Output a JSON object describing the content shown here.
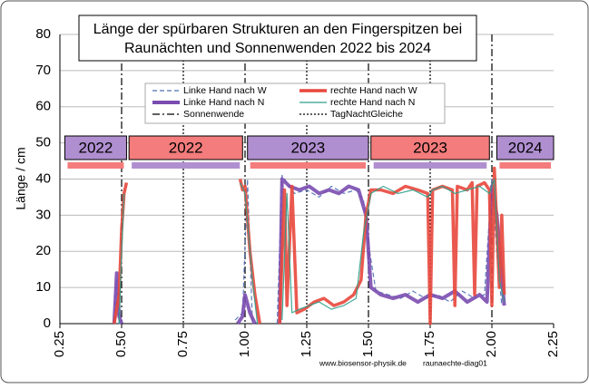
{
  "chart_data": {
    "type": "line",
    "title": [
      "Länge der spürbaren Strukturen an den Fingerspitzen bei",
      "Raunächten  und Sonnenwenden 2022 bis 2024"
    ],
    "y_label": "Länge / cm",
    "footer": [
      "www.biosensor-physik.de",
      "raunaechte-diag01"
    ],
    "xlim": [
      0.25,
      2.25
    ],
    "xticks": [
      {
        "value": 0.25,
        "label": "0.25"
      },
      {
        "value": 0.5,
        "label": "0.50"
      },
      {
        "value": 0.75,
        "label": "0.75"
      },
      {
        "value": 1.0,
        "label": "1.00"
      },
      {
        "value": 1.25,
        "label": "1.25"
      },
      {
        "value": 1.5,
        "label": "1.50"
      },
      {
        "value": 1.75,
        "label": "1.75"
      },
      {
        "value": 2.0,
        "label": "2.00"
      },
      {
        "value": 2.25,
        "label": "2.25"
      }
    ],
    "ylim": [
      0,
      80
    ],
    "yticks": [
      0,
      10,
      20,
      30,
      40,
      50,
      60,
      70,
      80
    ],
    "grid": true,
    "series": [
      {
        "name": "Linke Hand nach W",
        "color": "#4a6fb5",
        "line_style": "dashed",
        "x": [
          0.47,
          0.48,
          0.49,
          0.5,
          0.7,
          0.96,
          0.99,
          1.01,
          1.03,
          1.08,
          1.13,
          1.15,
          1.2,
          1.25,
          1.3,
          1.35,
          1.4,
          1.45,
          1.48,
          1.5,
          1.53,
          1.58,
          1.63,
          1.68,
          1.73,
          1.78,
          1.83,
          1.88,
          1.93,
          1.97,
          2.0,
          2.02,
          2.04
        ],
        "values": [
          1,
          12,
          0,
          0,
          null,
          1,
          3,
          40,
          0,
          null,
          0,
          41,
          36,
          37,
          35,
          38,
          36,
          37,
          34,
          22,
          9,
          8,
          7,
          9,
          7,
          8,
          6,
          9,
          7,
          8,
          40,
          20,
          5
        ]
      },
      {
        "name": "Linke Hand nach N",
        "color": "#7a4cb0",
        "line_style": "solid",
        "x": [
          0.47,
          0.48,
          0.49,
          0.5,
          0.7,
          0.97,
          0.99,
          1.0,
          1.02,
          1.04,
          1.08,
          1.14,
          1.15,
          1.18,
          1.22,
          1.26,
          1.3,
          1.34,
          1.38,
          1.42,
          1.46,
          1.49,
          1.51,
          1.55,
          1.6,
          1.65,
          1.7,
          1.75,
          1.8,
          1.85,
          1.9,
          1.95,
          1.98,
          2.0,
          2.02,
          2.05
        ],
        "values": [
          0,
          14,
          2,
          0,
          null,
          0,
          2,
          8,
          3,
          0,
          null,
          0,
          40,
          38,
          37,
          38,
          36,
          37,
          36,
          38,
          37,
          30,
          10,
          8,
          7,
          8,
          6,
          8,
          7,
          9,
          6,
          8,
          6,
          38,
          30,
          5
        ]
      },
      {
        "name": "rechte Hand nach W",
        "color": "#e8473c",
        "line_style": "solid",
        "x": [
          0.47,
          0.49,
          0.5,
          0.51,
          0.52,
          0.7,
          0.98,
          0.99,
          1.0,
          1.02,
          1.04,
          1.06,
          1.1,
          1.14,
          1.16,
          1.17,
          1.19,
          1.21,
          1.24,
          1.28,
          1.32,
          1.36,
          1.4,
          1.44,
          1.47,
          1.49,
          1.51,
          1.55,
          1.6,
          1.65,
          1.7,
          1.74,
          1.75,
          1.76,
          1.8,
          1.84,
          1.85,
          1.86,
          1.9,
          1.92,
          1.93,
          1.94,
          1.97,
          1.99,
          2.0,
          2.01,
          2.03,
          2.04,
          2.05
        ],
        "values": [
          0,
          8,
          26,
          36,
          39,
          null,
          40,
          37,
          38,
          20,
          8,
          0,
          null,
          0,
          37,
          5,
          38,
          3,
          4,
          6,
          7,
          5,
          6,
          8,
          12,
          30,
          37,
          37,
          36,
          38,
          37,
          36,
          0,
          37,
          38,
          37,
          5,
          38,
          37,
          39,
          8,
          38,
          39,
          37,
          5,
          43,
          10,
          30,
          8
        ]
      },
      {
        "name": "rechte Hand nach N",
        "color": "#2e9e8a",
        "line_style": "solid",
        "x": [
          0.49,
          0.5,
          0.51,
          0.7,
          0.98,
          1.0,
          1.03,
          1.05,
          1.1,
          1.15,
          1.17,
          1.19,
          1.22,
          1.26,
          1.3,
          1.35,
          1.4,
          1.45,
          1.48,
          1.51,
          1.56,
          1.62,
          1.68,
          1.74,
          1.76,
          1.8,
          1.85,
          1.9,
          1.95,
          1.99,
          2.01,
          2.03,
          2.05
        ],
        "values": [
          0,
          20,
          36,
          null,
          39,
          36,
          12,
          0,
          null,
          1,
          36,
          3,
          4,
          5,
          6,
          4,
          5,
          7,
          25,
          36,
          38,
          36,
          37,
          35,
          37,
          38,
          36,
          37,
          38,
          36,
          40,
          12,
          6
        ]
      }
    ],
    "reference_lines": [
      {
        "name": "Sonnenwende",
        "line_style": "dashdot",
        "color": "#000000",
        "x": [
          0.5,
          1.0,
          1.5,
          2.0
        ]
      },
      {
        "name": "TagNachtGleiche",
        "line_style": "dotted",
        "color": "#000000",
        "x": [
          0.75,
          1.25,
          1.75
        ]
      }
    ],
    "periods": [
      {
        "label": "2022",
        "color": "#b08fd0",
        "band_color": "#f47c7c",
        "x": [
          0.27,
          0.52
        ]
      },
      {
        "label": "2022",
        "color": "#f47c7c",
        "band_color": "#b08fd0",
        "x": [
          0.53,
          0.99
        ]
      },
      {
        "label": "2023",
        "color": "#b08fd0",
        "band_color": "#f47c7c",
        "x": [
          1.01,
          1.5
        ]
      },
      {
        "label": "2023",
        "color": "#f47c7c",
        "band_color": "#b08fd0",
        "x": [
          1.51,
          1.99
        ]
      },
      {
        "label": "2024",
        "color": "#b08fd0",
        "band_color": "#f47c7c",
        "x": [
          2.02,
          2.25
        ]
      }
    ]
  }
}
